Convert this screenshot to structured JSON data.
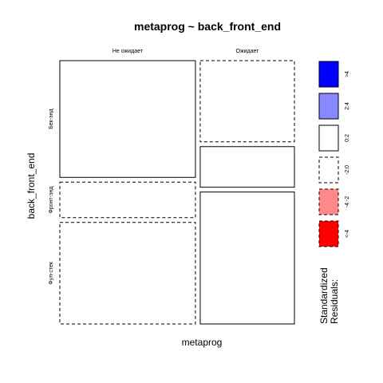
{
  "chart_data": {
    "type": "mosaic",
    "title": "metaprog ~ back_front_end",
    "xlabel": "metaprog",
    "ylabel": "back_front_end",
    "columns": [
      "Не ожидает",
      "Ожидает"
    ],
    "rows": [
      "Бек-энд",
      "Фронт-энд",
      "Фул-стек"
    ],
    "column_proportions": [
      0.59,
      0.41
    ],
    "cell_proportions": [
      [
        0.46,
        0.14,
        0.4
      ],
      [
        0.32,
        0.16,
        0.52
      ]
    ],
    "residual_class": [
      [
        "0:2",
        "-2:0",
        "-2:0"
      ],
      [
        "-2:0",
        "0:2",
        "0:2"
      ]
    ],
    "legend": {
      "title_line1": "Standardized",
      "title_line2": "Residuals:",
      "items": [
        {
          "label": ">4",
          "color": "#0000ff",
          "dashed": false
        },
        {
          "label": "2:4",
          "color": "#8888ff",
          "dashed": false
        },
        {
          "label": "0:2",
          "color": "#ffffff",
          "dashed": false
        },
        {
          "label": "-2:0",
          "color": "#ffffff",
          "dashed": true
        },
        {
          "label": "-4:-2",
          "color": "#ff8888",
          "dashed": true
        },
        {
          "label": "<-4",
          "color": "#ff0000",
          "dashed": true
        }
      ]
    }
  }
}
